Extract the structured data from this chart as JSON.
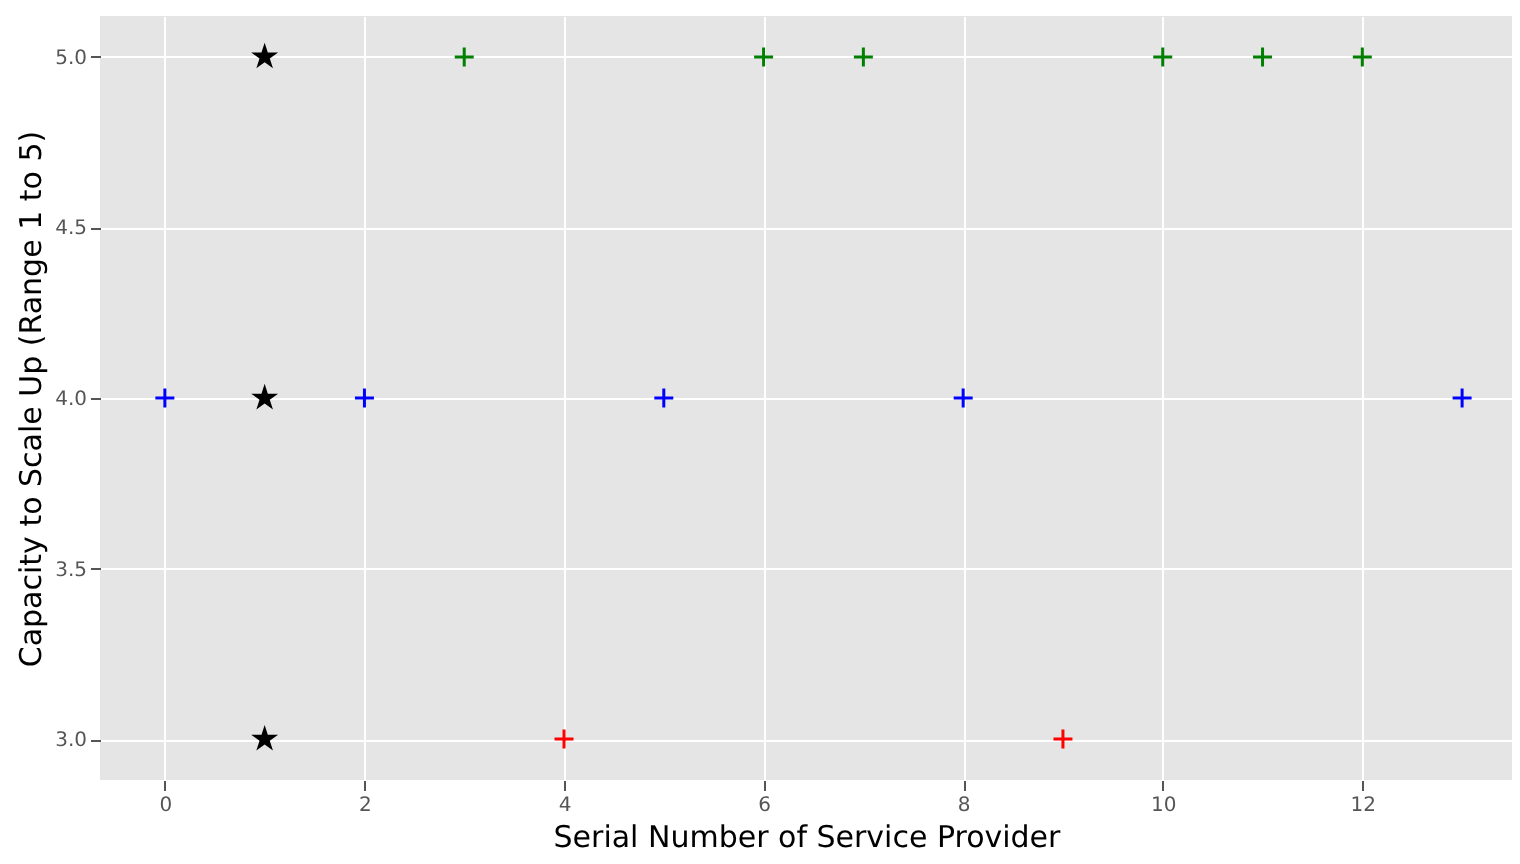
{
  "chart_data": {
    "type": "scatter",
    "xlabel": "Serial Number of Service Provider",
    "ylabel": "Capacity to Scale Up (Range 1 to 5)",
    "xlim": [
      -0.65,
      13.5
    ],
    "xticks": [
      0,
      2,
      4,
      6,
      8,
      10,
      12
    ],
    "ylim": [
      2.88,
      5.12
    ],
    "yticks": [
      {
        "value": 3,
        "label": "3.0"
      },
      3.5,
      {
        "value": 4,
        "label": "4.0"
      },
      4.5,
      {
        "value": 5,
        "label": "5.0"
      }
    ],
    "grid": true,
    "series": [
      {
        "color": "#0000ff",
        "marker": "cross",
        "x": [
          0,
          2,
          5,
          8,
          13
        ],
        "values": [
          4,
          4,
          4,
          4,
          4
        ]
      },
      {
        "color": "#008000",
        "marker": "cross",
        "x": [
          3,
          6,
          7,
          10,
          11,
          12
        ],
        "values": [
          5,
          5,
          5,
          5,
          5,
          5
        ]
      },
      {
        "color": "#ff0000",
        "marker": "cross",
        "x": [
          4,
          9
        ],
        "values": [
          3,
          3
        ]
      },
      {
        "color": "#000000",
        "marker": "star",
        "x": [
          1,
          1,
          1
        ],
        "values": [
          3,
          4,
          5
        ]
      }
    ]
  }
}
